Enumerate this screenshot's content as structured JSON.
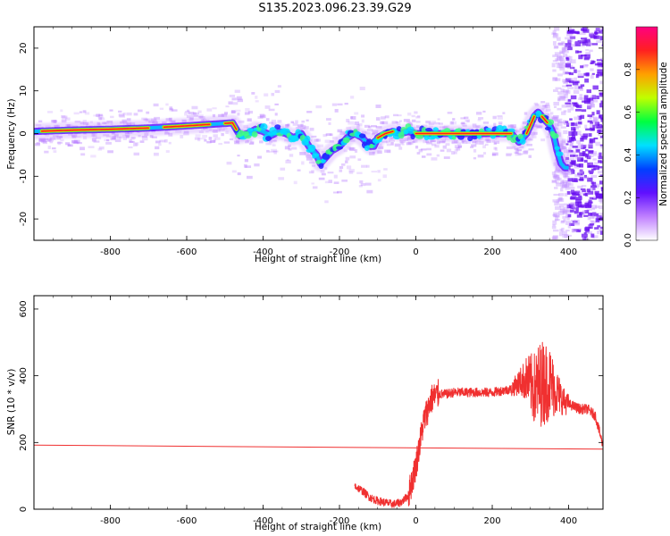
{
  "title": "S135.2023.096.23.39.G29",
  "chart_data": [
    {
      "type": "heatmap",
      "xlabel": "Height of straight line (km)",
      "ylabel": "Frequency (Hz)",
      "xlim": [
        -1000,
        490
      ],
      "ylim": [
        -25,
        25
      ],
      "xticks": [
        -800,
        -600,
        -400,
        -200,
        0,
        200,
        400
      ],
      "yticks": [
        -20,
        -10,
        0,
        10,
        20
      ],
      "colorbar": {
        "label": "Normalized spectral amplitude",
        "range": [
          0,
          1
        ],
        "ticks": [
          "0.0",
          "0.2",
          "0.4",
          "0.6",
          "0.8"
        ],
        "colormap": [
          "#ffffff",
          "#c080ff",
          "#6010ff",
          "#0040ff",
          "#00e0ff",
          "#00ff40",
          "#c0ff00",
          "#ffa000",
          "#ff2020",
          "#ff0080"
        ]
      },
      "ridge": {
        "x": [
          -1000,
          -900,
          -800,
          -700,
          -600,
          -530,
          -480,
          -460,
          -440,
          -420,
          -400,
          -380,
          -360,
          -340,
          -320,
          -300,
          -280,
          -260,
          -250,
          -240,
          -220,
          -200,
          -180,
          -160,
          -140,
          -120,
          -110,
          -100,
          -80,
          -60,
          -40,
          -20,
          0,
          100,
          200,
          250,
          260,
          270,
          280,
          290,
          300,
          310,
          320,
          330,
          340,
          350,
          360,
          370,
          380,
          390,
          400
        ],
        "y": [
          0.5,
          0.8,
          1,
          1.3,
          1.8,
          2.2,
          2.5,
          -0.5,
          0,
          1,
          0.5,
          -0.5,
          0.5,
          0,
          -1,
          0,
          -3,
          -5,
          -7,
          -6,
          -4,
          -3,
          -1,
          0,
          -1,
          -3,
          -3,
          -1,
          0,
          0.5,
          0,
          0.5,
          0,
          0,
          0,
          0,
          -1,
          -2,
          -1,
          0,
          2,
          4,
          5,
          4,
          3,
          2,
          0,
          -4,
          -7,
          -8,
          -8
        ]
      }
    },
    {
      "type": "line",
      "xlabel": "Height of straight line (km)",
      "ylabel": "SNR (10 * v/v)",
      "xlim": [
        -1000,
        490
      ],
      "ylim": [
        0,
        640
      ],
      "xticks": [
        -800,
        -600,
        -400,
        -200,
        0,
        200,
        400
      ],
      "yticks": [
        0,
        200,
        400,
        600
      ],
      "color": "#f03030",
      "series": [
        {
          "x": [
            -1000,
            490
          ],
          "values": [
            192,
            180
          ]
        },
        {
          "x": [
            -160,
            -140,
            -120,
            -100,
            -80,
            -60,
            -40,
            -20,
            0,
            20,
            40,
            60,
            80,
            100,
            150,
            200,
            250,
            270,
            290,
            310,
            330,
            350,
            370,
            390,
            410,
            430,
            450,
            470,
            490
          ],
          "values": [
            70,
            55,
            35,
            25,
            20,
            15,
            20,
            40,
            130,
            260,
            330,
            345,
            345,
            350,
            350,
            350,
            360,
            380,
            390,
            360,
            380,
            380,
            350,
            320,
            310,
            300,
            300,
            280,
            190
          ]
        }
      ]
    }
  ]
}
